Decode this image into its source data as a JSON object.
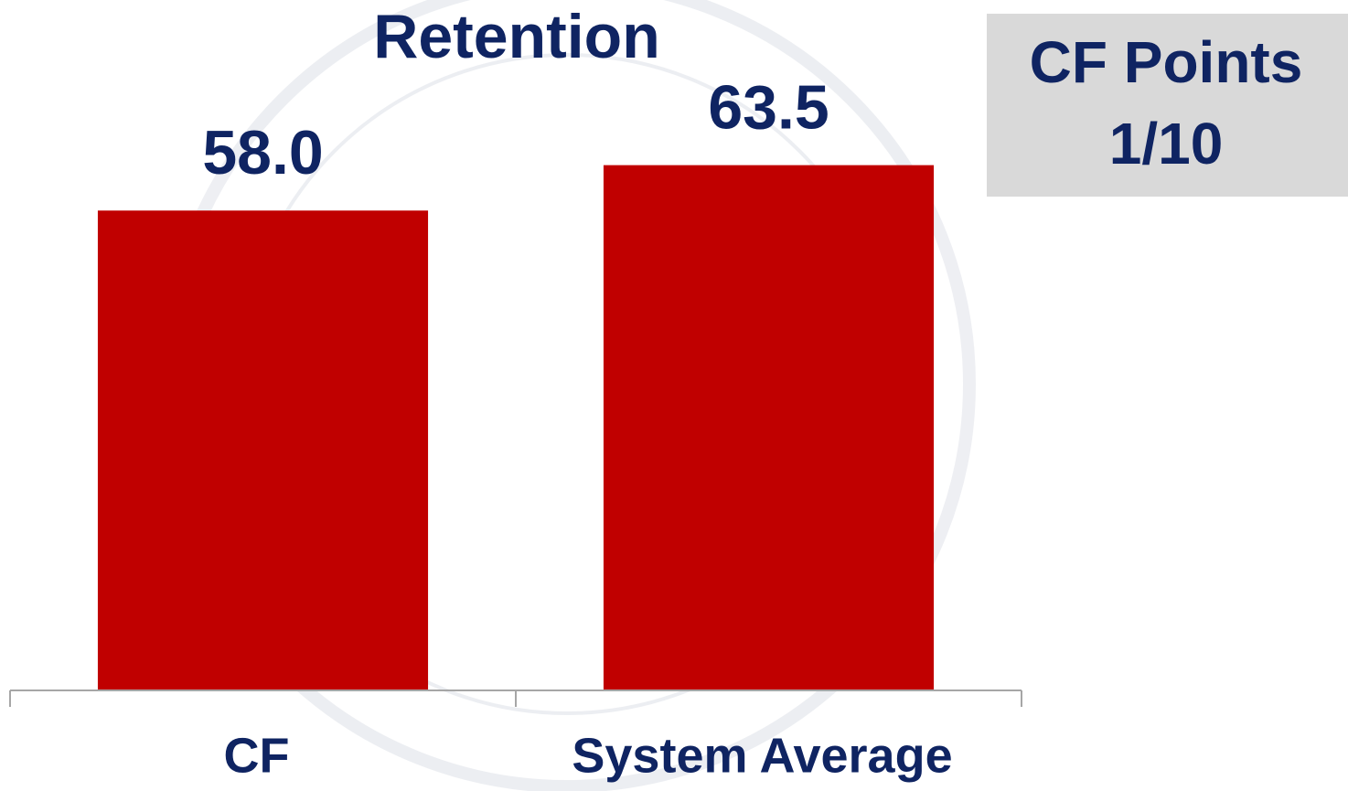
{
  "chart_data": {
    "type": "bar",
    "title": "Retention",
    "categories": [
      "CF",
      "System Average"
    ],
    "values": [
      58.0,
      63.5
    ],
    "value_labels": [
      "58.0",
      "63.5"
    ],
    "color": "#c00000",
    "annotation": [
      "CF Points",
      "1/10"
    ]
  }
}
